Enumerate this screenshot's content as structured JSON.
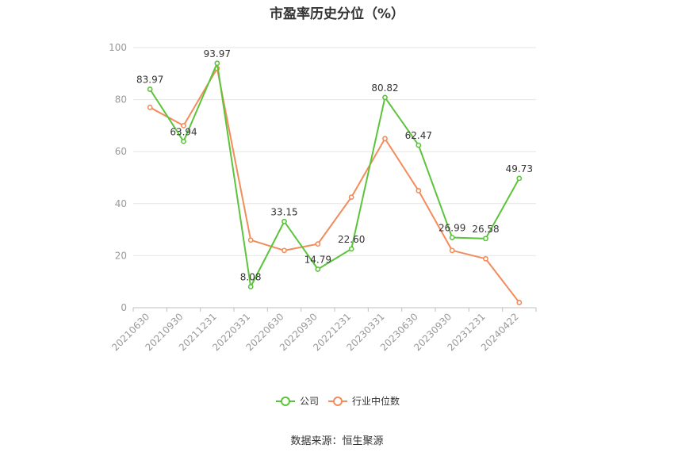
{
  "chart_data": {
    "type": "line",
    "title": "市盈率历史分位（%）",
    "categories": [
      "20210630",
      "20210930",
      "20211231",
      "20220331",
      "20220630",
      "20220930",
      "20221231",
      "20230331",
      "20230630",
      "20230930",
      "20231231",
      "20240422"
    ],
    "series": [
      {
        "name": "公司",
        "color": "#5cc43b",
        "values": [
          83.97,
          63.94,
          93.97,
          8.08,
          33.15,
          14.79,
          22.6,
          80.82,
          62.47,
          26.99,
          26.58,
          49.73
        ],
        "labels": [
          "83.97",
          "63.94",
          "93.97",
          "8.08",
          "33.15",
          "14.79",
          "22.60",
          "80.82",
          "62.47",
          "26.99",
          "26.58",
          "49.73"
        ]
      },
      {
        "name": "行业中位数",
        "color": "#f28c5b",
        "values": [
          77,
          70,
          92,
          26,
          22,
          24.5,
          42.5,
          65,
          45,
          22,
          18.8,
          2
        ]
      }
    ],
    "y_ticks": [
      "0",
      "20",
      "40",
      "60",
      "80",
      "100"
    ],
    "ylim": [
      0,
      100
    ],
    "grid": true,
    "legend_position": "bottom-center"
  },
  "source_text": "数据来源：恒生聚源"
}
